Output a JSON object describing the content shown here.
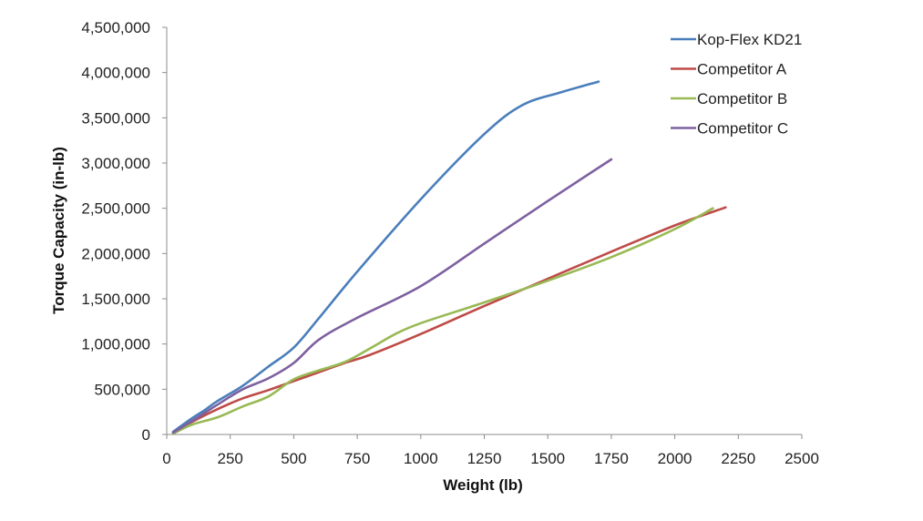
{
  "chart_data": {
    "type": "line",
    "title": "",
    "xlabel": "Weight (lb)",
    "ylabel": "Torque Capacity (in-lb)",
    "xlim": [
      0,
      2500
    ],
    "ylim": [
      0,
      4500000
    ],
    "x_ticks": [
      0,
      250,
      500,
      750,
      1000,
      1250,
      1500,
      1750,
      2000,
      2250,
      2500
    ],
    "x_tick_labels": [
      "0",
      "250",
      "500",
      "750",
      "1000",
      "1250",
      "1500",
      "1750",
      "2000",
      "2250",
      "2500"
    ],
    "y_ticks": [
      0,
      500000,
      1000000,
      1500000,
      2000000,
      2500000,
      3000000,
      3500000,
      4000000,
      4500000
    ],
    "y_tick_labels": [
      "0",
      "500,000",
      "1,000,000",
      "1,500,000",
      "2,000,000",
      "2,500,000",
      "3,000,000",
      "3,500,000",
      "4,000,000",
      "4,500,000"
    ],
    "grid": false,
    "legend_position": "top-right",
    "series": [
      {
        "name": "Kop-Flex KD21",
        "color": "#4a7ebb",
        "x": [
          25,
          100,
          150,
          200,
          300,
          400,
          500,
          600,
          750,
          1000,
          1250,
          1400,
          1550,
          1700
        ],
        "y": [
          30000,
          180000,
          270000,
          370000,
          540000,
          750000,
          960000,
          1290000,
          1800000,
          2600000,
          3320000,
          3640000,
          3780000,
          3900000
        ]
      },
      {
        "name": "Competitor A",
        "color": "#be4b48",
        "x": [
          25,
          100,
          200,
          300,
          400,
          500,
          600,
          700,
          800,
          1000,
          1250,
          1500,
          1750,
          2000,
          2200
        ],
        "y": [
          20000,
          140000,
          280000,
          400000,
          490000,
          590000,
          690000,
          790000,
          880000,
          1110000,
          1420000,
          1720000,
          2020000,
          2310000,
          2510000
        ]
      },
      {
        "name": "Competitor B",
        "color": "#98b954",
        "x": [
          25,
          100,
          200,
          300,
          400,
          500,
          600,
          700,
          800,
          900,
          1000,
          1250,
          1500,
          1750,
          2000,
          2150
        ],
        "y": [
          10000,
          110000,
          190000,
          310000,
          420000,
          610000,
          710000,
          800000,
          950000,
          1110000,
          1230000,
          1460000,
          1700000,
          1960000,
          2270000,
          2500000
        ]
      },
      {
        "name": "Competitor C",
        "color": "#7d60a0",
        "x": [
          25,
          100,
          150,
          200,
          300,
          400,
          500,
          600,
          750,
          1000,
          1250,
          1500,
          1750
        ],
        "y": [
          20000,
          150000,
          240000,
          330000,
          500000,
          620000,
          790000,
          1050000,
          1290000,
          1640000,
          2110000,
          2580000,
          3040000
        ]
      }
    ]
  }
}
